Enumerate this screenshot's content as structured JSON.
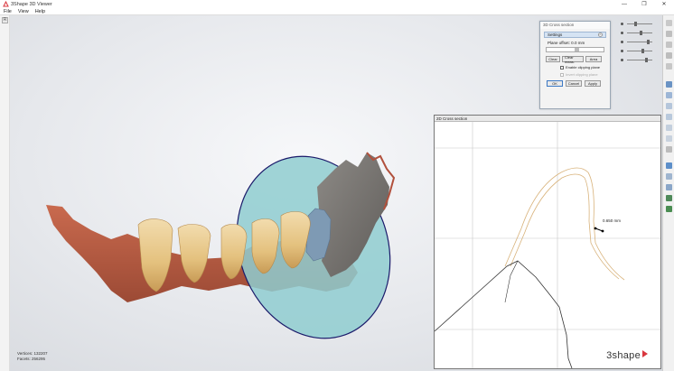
{
  "window": {
    "title": "3Shape 3D Viewer",
    "controls": [
      "—",
      "❐",
      "✕"
    ]
  },
  "menu": [
    "File",
    "View",
    "Help"
  ],
  "left_toolbar": {
    "button_label": "R"
  },
  "stats": {
    "vertices": "Vertices: 132207",
    "facets": "Facets: 256295"
  },
  "cross_section_dialog": {
    "title": "3D Cross section",
    "settings_label": "Settings",
    "plane_offset": "Plane offset: 0.0 mm",
    "buttons": [
      "Clear",
      "Clear meas.",
      "Area"
    ],
    "enable_clipping": "Enable clipping plane",
    "invert_clipping": "Invert clipping plane",
    "ok": "OK",
    "cancel": "Cancel",
    "apply": "Apply"
  },
  "panel_2d": {
    "title": "2D Cross section",
    "measurement": "0.650 mm",
    "brand": "3shape"
  },
  "colors": {
    "accent": "#3b78c4",
    "brand_red": "#d9363e",
    "plane_fill": "#8fcdd0",
    "plane_stroke": "#1a1a6a"
  }
}
